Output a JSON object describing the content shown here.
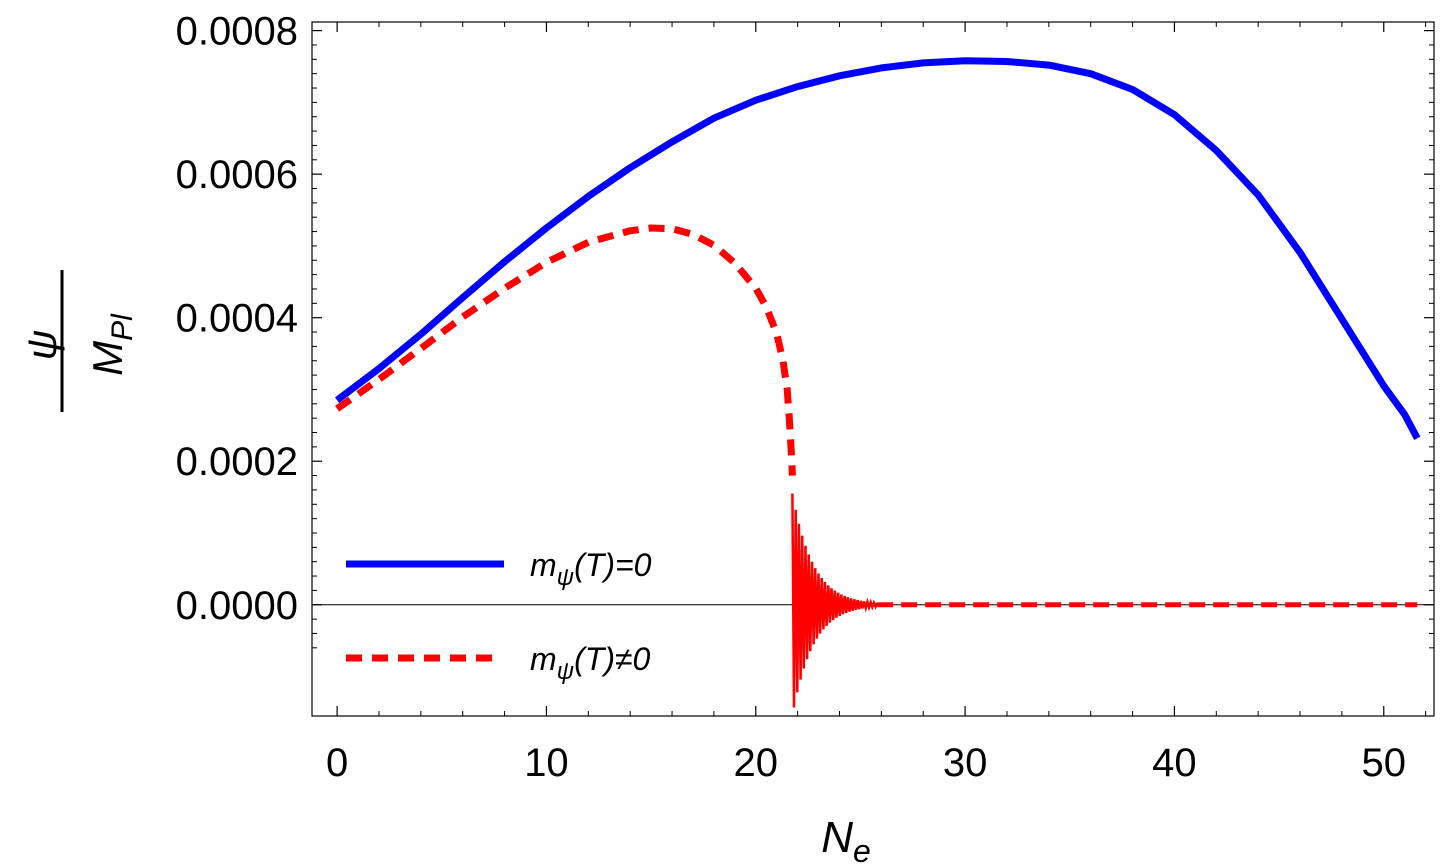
{
  "chart_data": {
    "type": "line",
    "title": "",
    "xlabel": "N",
    "xlabel_sub": "e",
    "ylabel_num": "ψ",
    "ylabel_den": "M",
    "ylabel_den_sub": "Pl",
    "xlim": [
      -1.2,
      52.4
    ],
    "ylim": [
      -0.000155,
      0.000812
    ],
    "x_ticks": [
      0,
      10,
      20,
      30,
      40,
      50
    ],
    "x_tick_labels": [
      "0",
      "10",
      "20",
      "30",
      "40",
      "50"
    ],
    "y_ticks": [
      0,
      0.0002,
      0.0004,
      0.0006,
      0.0008
    ],
    "y_tick_labels": [
      "0.0000",
      "0.0002",
      "0.0004",
      "0.0006",
      "0.0008"
    ],
    "legend_position": "bottom-left",
    "series": [
      {
        "name": "mψ(T)=0",
        "label_main": "m",
        "label_sub": "ψ",
        "label_rest": "(T)=0",
        "color": "#0000ff",
        "style": "solid",
        "x": [
          0,
          2,
          4,
          6,
          8,
          10,
          12,
          14,
          16,
          18,
          20,
          22,
          24,
          26,
          28,
          30,
          32,
          34,
          36,
          38,
          40,
          42,
          44,
          46,
          48,
          50,
          51,
          51.6
        ],
        "y": [
          0.000285,
          0.000329,
          0.000377,
          0.000428,
          0.000478,
          0.000525,
          0.000569,
          0.000609,
          0.000645,
          0.000678,
          0.000703,
          0.000722,
          0.000737,
          0.000748,
          0.000755,
          0.000758,
          0.000757,
          0.000752,
          0.00074,
          0.000718,
          0.000683,
          0.000633,
          0.000571,
          0.000491,
          0.000398,
          0.000305,
          0.000265,
          0.000232
        ]
      },
      {
        "name": "mψ(T)≠0",
        "label_main": "m",
        "label_sub": "ψ",
        "label_rest": "(T)≠0",
        "color": "#ff0000",
        "style": "dashed",
        "x": [
          0,
          2,
          4,
          6,
          8,
          10,
          12,
          14,
          15,
          16,
          17,
          18,
          19,
          20,
          20.5,
          21,
          21.3,
          21.5,
          21.6,
          21.7,
          21.75
        ],
        "y": [
          0.000273,
          0.000314,
          0.000357,
          0.000401,
          0.000441,
          0.000477,
          0.000505,
          0.000521,
          0.000525,
          0.000524,
          0.000516,
          0.000501,
          0.000476,
          0.000441,
          0.000415,
          0.000378,
          0.00034,
          0.0003,
          0.00026,
          0.00021,
          0.00018
        ],
        "oscillation": {
          "x_start": 21.75,
          "x_end": 25.8,
          "initial_amplitude": 0.000155,
          "decay_to": 2.5e-06,
          "cycles": 26
        },
        "tail": {
          "x": [
            25.8,
            51.6
          ],
          "y": [
            0,
            0
          ]
        }
      }
    ]
  }
}
